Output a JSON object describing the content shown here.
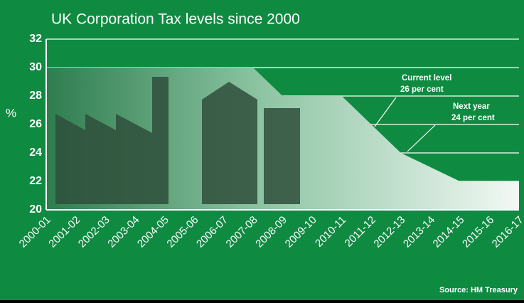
{
  "chart_data": {
    "type": "area",
    "title": "UK Corporation Tax levels since 2000",
    "ylabel": "%",
    "categories": [
      "2000-01",
      "2001-02",
      "2002-03",
      "2003-04",
      "2004-05",
      "2005-06",
      "2006-07",
      "2007-08",
      "2008-09",
      "2009-10",
      "2010-11",
      "2011-12",
      "2012-13",
      "2013-14",
      "2014-15",
      "2015-16",
      "2016-17"
    ],
    "series": [
      {
        "name": "Corporation Tax",
        "color": "#2e7d4f",
        "values": [
          30,
          30,
          30,
          30,
          30,
          30,
          30,
          30,
          28,
          28,
          28,
          26,
          24,
          23,
          22,
          22,
          22
        ]
      }
    ],
    "ylim": [
      20,
      32
    ],
    "yticks": [
      20,
      22,
      24,
      26,
      28,
      30,
      32
    ],
    "grid": true,
    "annotations": [
      {
        "lines": [
          "Current level",
          "26 per cent"
        ]
      },
      {
        "lines": [
          "Next year",
          "24 per cent"
        ]
      }
    ],
    "source": "Source: HM Treasury"
  }
}
